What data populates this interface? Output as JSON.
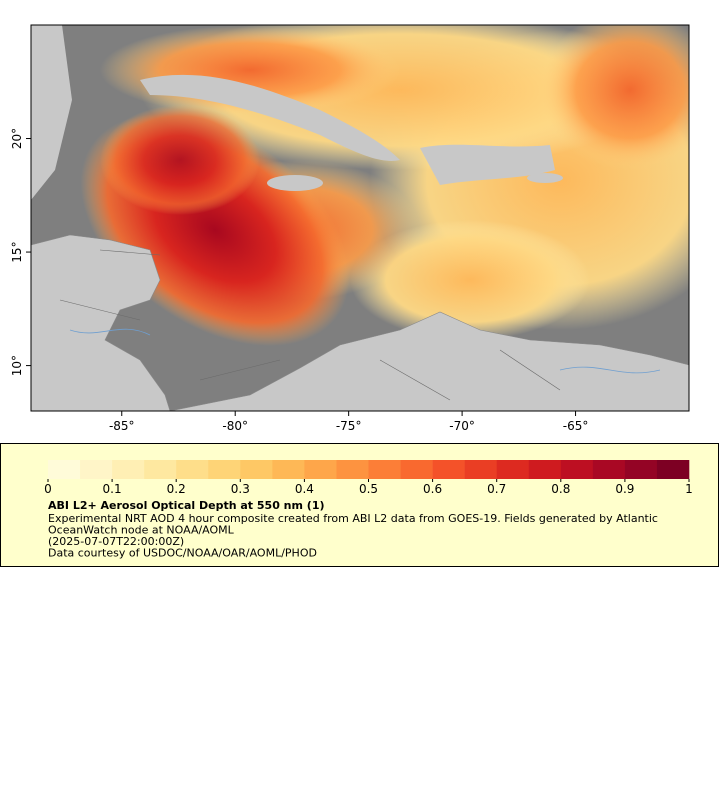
{
  "map": {
    "xlim": [
      -89,
      -60
    ],
    "ylim": [
      8,
      25
    ],
    "xticks": [
      {
        "value": -85,
        "label": "-85°"
      },
      {
        "value": -80,
        "label": "-80°"
      },
      {
        "value": -75,
        "label": "-75°"
      },
      {
        "value": -70,
        "label": "-70°"
      },
      {
        "value": -65,
        "label": "-65°"
      }
    ],
    "yticks": [
      {
        "value": 10,
        "label": "10°"
      },
      {
        "value": 15,
        "label": "15°"
      },
      {
        "value": 20,
        "label": "20°"
      }
    ]
  },
  "colorbar": {
    "range": [
      0,
      1
    ],
    "ticks": [
      0,
      0.1,
      0.2,
      0.3,
      0.4,
      0.5,
      0.6,
      0.7,
      0.8,
      0.9,
      1
    ],
    "colors": [
      "#fffbd9",
      "#fff5c8",
      "#ffefb4",
      "#fee8a0",
      "#fede8a",
      "#fed477",
      "#fec865",
      "#feb856",
      "#fea64a",
      "#fd9340",
      "#fc7e37",
      "#f9692f",
      "#f45229",
      "#ea3e24",
      "#dd2a20",
      "#cf1b1f",
      "#bd0f22",
      "#a90824",
      "#940425",
      "#7d0023"
    ],
    "title": "ABI L2+ Aerosol Optical Depth at 550 nm (1)",
    "lines": [
      "Experimental NRT AOD 4 hour composite created from ABI L2 data from GOES-19. Fields generated by Atlantic",
      "OceanWatch node at NOAA/AOML",
      "(2025-07-07T22:00:00Z)",
      "Data courtesy of USDOC/NOAA/OAR/AOML/PHOD"
    ]
  }
}
